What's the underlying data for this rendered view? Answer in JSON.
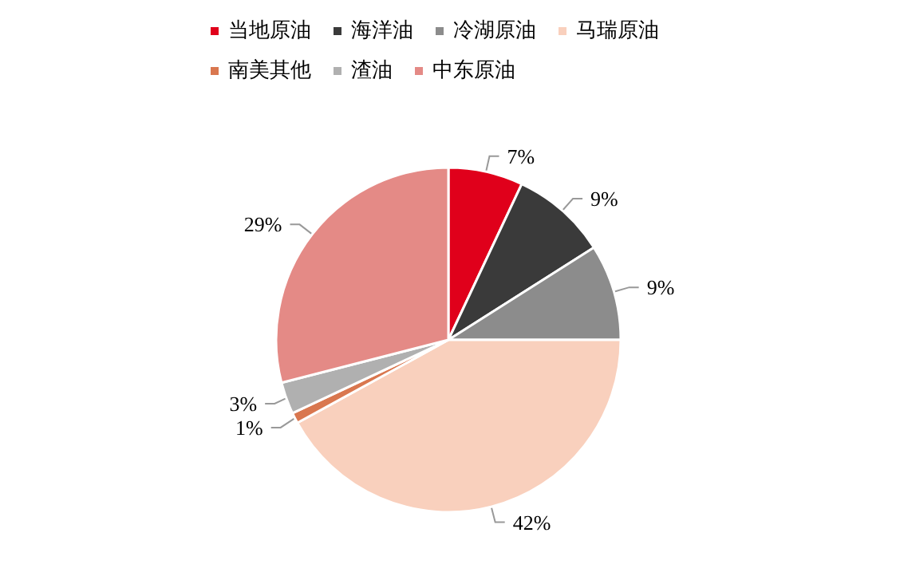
{
  "chart_data": {
    "type": "pie",
    "categories": [
      "当地原油",
      "海洋油",
      "冷湖原油",
      "马瑞原油",
      "南美其他",
      "渣油",
      "中东原油"
    ],
    "values": [
      7,
      9,
      9,
      42,
      1,
      3,
      29
    ],
    "colors": [
      "#e0001b",
      "#3a3a3a",
      "#8c8c8c",
      "#f9d0bd",
      "#d9774f",
      "#b0b0b0",
      "#e48a86"
    ],
    "value_labels": [
      "7%",
      "9%",
      "9%",
      "42%",
      "1%",
      "3%",
      "29%"
    ],
    "legend": "top"
  }
}
